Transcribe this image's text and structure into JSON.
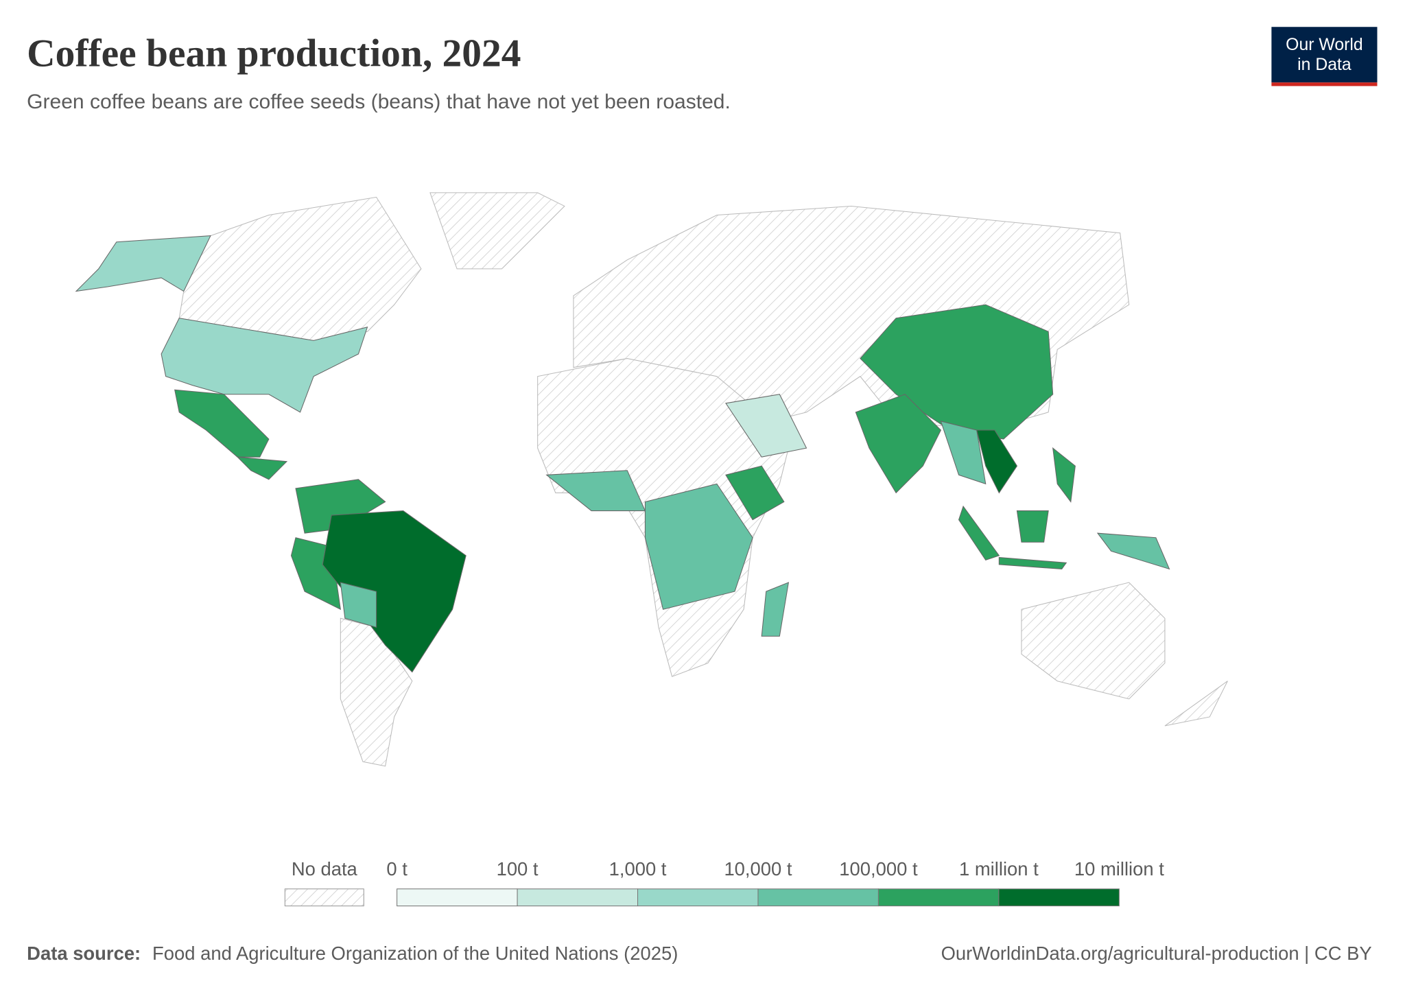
{
  "header": {
    "title": "Coffee bean production, 2024",
    "subtitle": "Green coffee beans are coffee seeds (beans) that have not yet been roasted.",
    "logo": [
      "Our World",
      "in Data"
    ]
  },
  "legend": {
    "no_data": "No data",
    "ticks": [
      "0 t",
      "100 t",
      "1,000 t",
      "10,000 t",
      "100,000 t",
      "1 million t",
      "10 million t"
    ],
    "colors": [
      "#edf8f5",
      "#c7e9df",
      "#99d8c9",
      "#66c2a4",
      "#2ca25f",
      "#006d2c"
    ]
  },
  "footer": {
    "source_label": "Data source:",
    "source": "Food and Agriculture Organization of the United Nations (2025)",
    "url": "OurWorldinData.org/agricultural-production | CC BY"
  }
}
